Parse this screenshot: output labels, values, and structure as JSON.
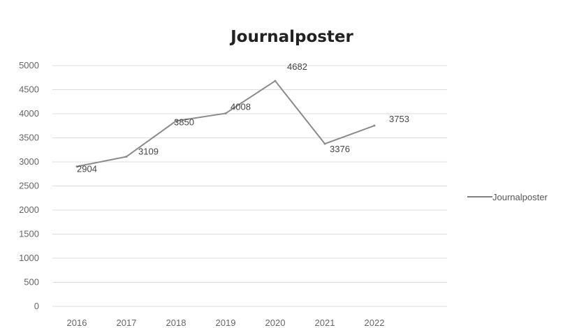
{
  "chart_data": {
    "type": "line",
    "title": "Journalposter",
    "categories": [
      "2016",
      "2017",
      "2018",
      "2019",
      "2020",
      "2021",
      "2022"
    ],
    "series": [
      {
        "name": "Journalposter",
        "values": [
          2904,
          3109,
          3850,
          4008,
          4682,
          3376,
          3753
        ]
      }
    ],
    "data_labels": [
      "2904",
      "3109",
      "3850",
      "4008",
      "4682",
      "3376",
      "3753"
    ],
    "y_ticks": [
      "0",
      "500",
      "1000",
      "1500",
      "2000",
      "2500",
      "3000",
      "3500",
      "4000",
      "4500",
      "5000"
    ],
    "ylim": [
      0,
      5000
    ],
    "xlabel": "",
    "ylabel": "",
    "grid": true,
    "legend_position": "right",
    "colors": {
      "line": "#8a8a8a",
      "grid": "#dcdcdc",
      "text": "#666666"
    }
  }
}
